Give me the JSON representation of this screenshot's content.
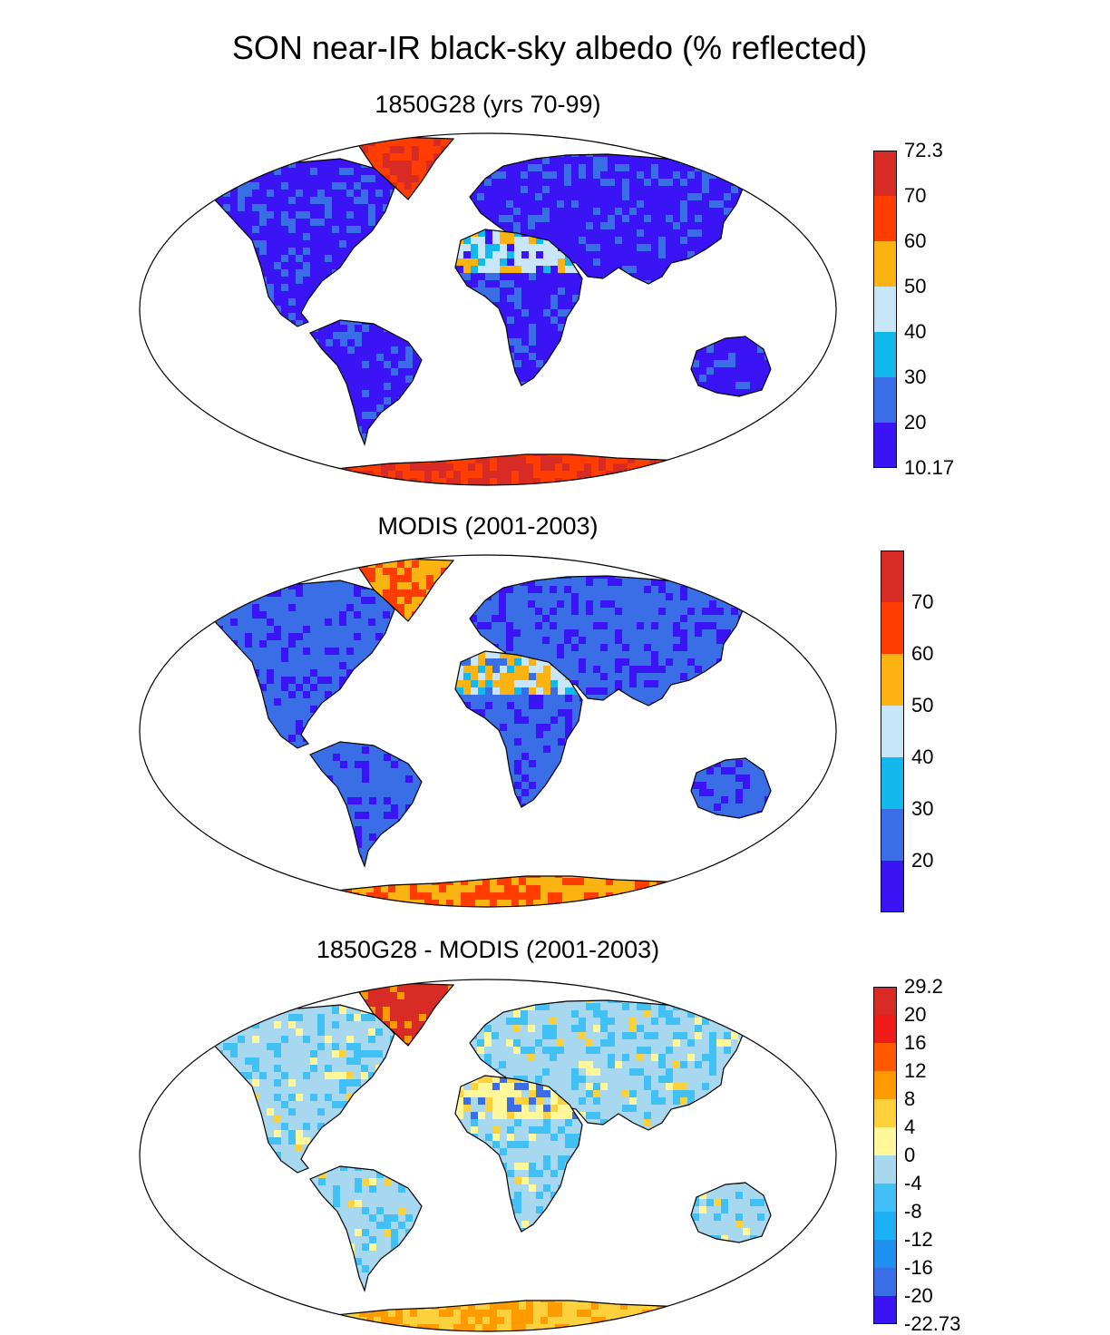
{
  "title": "SON near-IR black-sky albedo (% reflected)",
  "panels": [
    {
      "id": "model",
      "title": "1850G28 (yrs 70-99)",
      "colorbar": {
        "colors": [
          "#3a14f5",
          "#3a6ee6",
          "#13b9ec",
          "#c8e6f8",
          "#fbb311",
          "#ff3d00",
          "#d82b26"
        ],
        "labels": [
          "10.17",
          "20",
          "30",
          "40",
          "50",
          "60",
          "70",
          "72.3"
        ]
      },
      "land_colors": {
        "base": "#3a14f5",
        "patch": "#3a6ee6",
        "desert": [
          "#c8e6f8",
          "#fbb311",
          "#13b9ec"
        ],
        "ice": "#ff3d00",
        "ice2": "#d82b26"
      }
    },
    {
      "id": "obs",
      "title": "MODIS (2001-2003)",
      "colorbar": {
        "colors": [
          "#3a14f5",
          "#3a6ee6",
          "#13b9ec",
          "#c8e6f8",
          "#fbb311",
          "#ff3d00",
          "#d82b26"
        ],
        "labels": [
          "",
          "20",
          "30",
          "40",
          "50",
          "60",
          "70",
          ""
        ]
      },
      "land_colors": {
        "base": "#3a6ee6",
        "patch": "#3a14f5",
        "desert": [
          "#c8e6f8",
          "#fbb311",
          "#13b9ec"
        ],
        "ice": "#fbb311",
        "ice2": "#ff3d00"
      }
    },
    {
      "id": "diff",
      "title": "1850G28 - MODIS (2001-2003)",
      "colorbar": {
        "colors": [
          "#3a14f5",
          "#3a6ee6",
          "#1e90f0",
          "#1cb0f5",
          "#40c0f5",
          "#a8d8f0",
          "#fff79a",
          "#fdd13c",
          "#ff9a00",
          "#ff5a00",
          "#ef1b1b",
          "#d82b26"
        ],
        "labels": [
          "-22.73",
          "-20",
          "-16",
          "-12",
          "-8",
          "-4",
          "0",
          "4",
          "8",
          "12",
          "16",
          "20",
          "29.2"
        ]
      },
      "land_colors": {
        "base": "#a8d8f0",
        "patch": "#40c0f5",
        "desert": [
          "#fff79a",
          "#fdd13c",
          "#3a6ee6"
        ],
        "ice": "#fdd13c",
        "ice2": "#ff9a00",
        "greenland": "#d82b26"
      }
    }
  ]
}
